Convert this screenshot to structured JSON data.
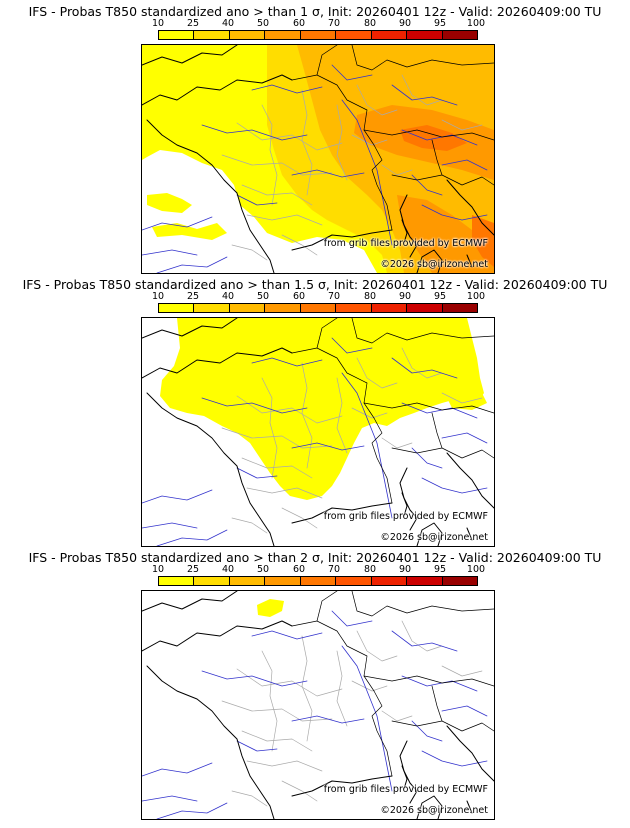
{
  "colors": {
    "legend": [
      "#ffff00",
      "#ffdd00",
      "#ffbb00",
      "#ff9900",
      "#ff7700",
      "#ff5500",
      "#ee2200",
      "#cc0000",
      "#990000",
      "#660000"
    ],
    "coast": "#000000",
    "border": "#000000",
    "region": "#aaaaaa",
    "river": "#3333cc"
  },
  "legend_labels": [
    "10",
    "25",
    "40",
    "50",
    "60",
    "70",
    "80",
    "90",
    "95",
    "100"
  ],
  "panels": [
    {
      "title": "IFS - Probas T850  standardized ano > than 1 σ, Init: 20260401 12z - Valid: 20260409:00 TU",
      "source": "from grib files provided by ECMWF",
      "copyright": "©2026 sb@irizone.net"
    },
    {
      "title": "IFS - Probas T850  standardized ano > than 1.5 σ, Init: 20260401 12z - Valid: 20260409:00 TU",
      "source": "from grib files provided by ECMWF",
      "copyright": "©2026 sb@irizone.net"
    },
    {
      "title": "IFS - Probas T850  standardized ano > than 2 σ, Init: 20260401 12z - Valid: 20260409:00 TU",
      "source": "from grib files provided by ECMWF",
      "copyright": "©2026 sb@irizone.net"
    }
  ]
}
